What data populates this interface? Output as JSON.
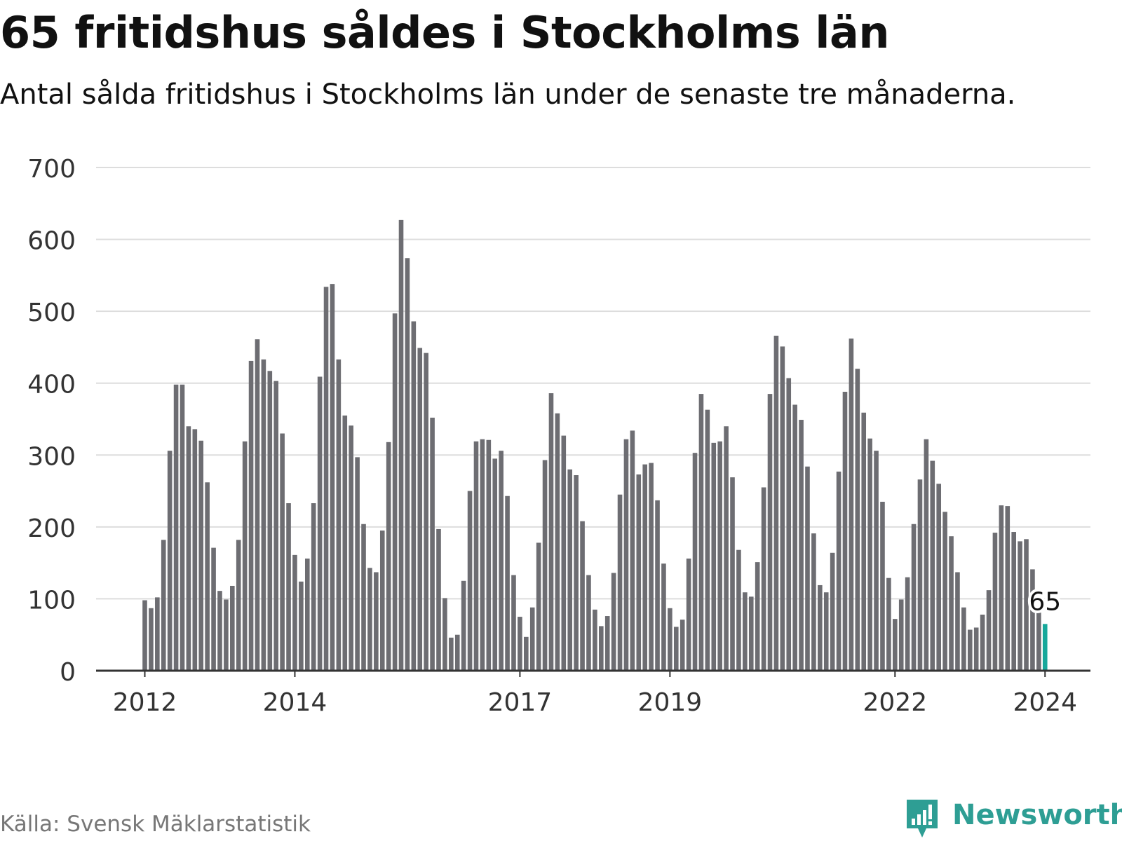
{
  "header": {
    "title": "65 fritidshus såldes i Stockholms län",
    "subtitle": "Antal sålda fritidshus i Stockholms län under de senaste tre månaderna."
  },
  "footer": {
    "source": "Källa: Svensk Mäklarstatistik",
    "brand": "Newsworthy"
  },
  "colors": {
    "bar": "#6d6d72",
    "highlight": "#17a89b",
    "grid": "#dddddd",
    "axis": "#333333",
    "brand": "#2e9e94"
  },
  "chart_data": {
    "type": "bar",
    "title": "65 fritidshus såldes i Stockholms län",
    "xlabel": "",
    "ylabel": "",
    "ylim": [
      0,
      700
    ],
    "yticks": [
      0,
      100,
      200,
      300,
      400,
      500,
      600,
      700
    ],
    "grid": true,
    "start_year": 2012,
    "xtick_years": [
      "2012",
      "2014",
      "2017",
      "2019",
      "2022",
      "2024"
    ],
    "xtick_indices": [
      0,
      24,
      60,
      84,
      120,
      144
    ],
    "values": [
      98,
      87,
      102,
      182,
      306,
      398,
      398,
      340,
      336,
      320,
      262,
      171,
      111,
      99,
      118,
      182,
      319,
      431,
      461,
      433,
      417,
      403,
      330,
      233,
      161,
      124,
      156,
      233,
      409,
      534,
      538,
      433,
      355,
      341,
      297,
      204,
      143,
      137,
      195,
      318,
      497,
      627,
      574,
      486,
      449,
      442,
      352,
      197,
      101,
      46,
      50,
      125,
      250,
      319,
      322,
      321,
      295,
      306,
      243,
      133,
      75,
      47,
      88,
      178,
      293,
      386,
      358,
      327,
      280,
      272,
      208,
      133,
      85,
      62,
      76,
      136,
      245,
      322,
      334,
      273,
      287,
      289,
      237,
      149,
      87,
      61,
      71,
      156,
      303,
      385,
      363,
      317,
      319,
      340,
      269,
      168,
      109,
      103,
      151,
      255,
      385,
      466,
      451,
      407,
      370,
      349,
      284,
      191,
      119,
      109,
      164,
      277,
      388,
      462,
      420,
      359,
      323,
      306,
      235,
      129,
      72,
      99,
      130,
      204,
      266,
      322,
      292,
      260,
      221,
      187,
      137,
      88,
      57,
      60,
      78,
      112,
      192,
      230,
      229,
      193,
      180,
      183,
      141,
      82,
      65
    ],
    "highlight_label": "65"
  }
}
